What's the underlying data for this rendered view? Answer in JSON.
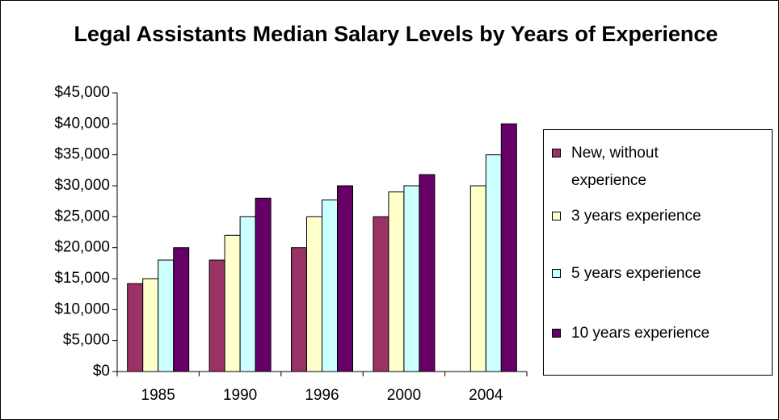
{
  "chart_data": {
    "type": "bar",
    "title": "Legal Assistants Median Salary Levels by Years of Experience",
    "categories": [
      "1985",
      "1990",
      "1996",
      "2000",
      "2004"
    ],
    "series": [
      {
        "name": "New, without experience",
        "color": "#993366",
        "values": [
          14200,
          18000,
          20000,
          25000,
          null
        ]
      },
      {
        "name": "3 years experience",
        "color": "#ffffcc",
        "values": [
          15000,
          22000,
          25000,
          29000,
          30000
        ]
      },
      {
        "name": "5 years experience",
        "color": "#ccffff",
        "values": [
          18000,
          25000,
          27700,
          30000,
          35000
        ]
      },
      {
        "name": "10 years experience",
        "color": "#660066",
        "values": [
          20000,
          28000,
          30000,
          31800,
          40000
        ]
      }
    ],
    "ylim": [
      0,
      45000
    ],
    "yticks": [
      {
        "value": 0,
        "label": "$0"
      },
      {
        "value": 5000,
        "label": "$5,000"
      },
      {
        "value": 10000,
        "label": "$10,000"
      },
      {
        "value": 15000,
        "label": "$15,000"
      },
      {
        "value": 20000,
        "label": "$20,000"
      },
      {
        "value": 25000,
        "label": "$25,000"
      },
      {
        "value": 30000,
        "label": "$30,000"
      },
      {
        "value": 35000,
        "label": "$35,000"
      },
      {
        "value": 40000,
        "label": "$40,000"
      },
      {
        "value": 45000,
        "label": "$45,000"
      }
    ],
    "grid": false,
    "legend": "right"
  }
}
